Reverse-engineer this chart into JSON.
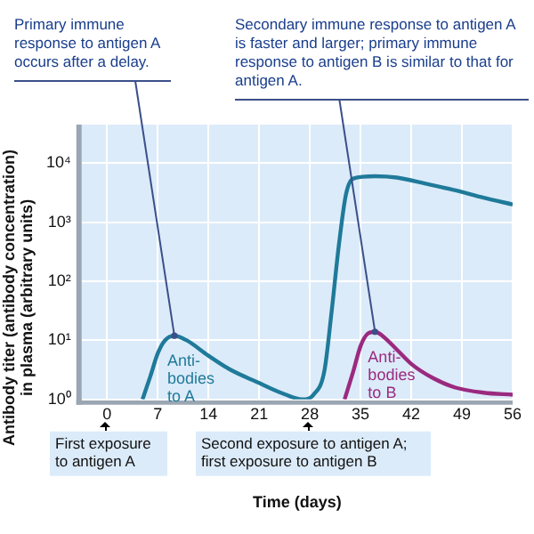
{
  "chart_data": {
    "type": "line",
    "xlabel": "Time (days)",
    "ylabel": "Antibody titer (antibody concentration) in plasma (arbitrary units)",
    "log": "y",
    "grid": true,
    "marker": "none",
    "xlim": [
      -3.5,
      56
    ],
    "xticks": [
      0,
      7,
      14,
      21,
      28,
      35,
      42,
      49,
      56
    ],
    "ylim": [
      1,
      45000
    ],
    "yticks": [
      {
        "value": 1,
        "label": "10⁰"
      },
      {
        "value": 10,
        "label": "10¹"
      },
      {
        "value": 100,
        "label": "10²"
      },
      {
        "value": 1000,
        "label": "10³"
      },
      {
        "value": 10000,
        "label": "10⁴"
      }
    ],
    "series": [
      {
        "name": "Anti-bodies to A",
        "color": "#1f7a9a",
        "x": [
          4.9,
          6,
          7,
          8,
          9.3,
          11,
          14,
          17,
          21,
          24,
          27,
          28.5,
          30,
          31,
          32,
          33,
          34,
          37,
          40,
          44,
          48,
          52,
          56
        ],
        "values": [
          1,
          2.5,
          6,
          10,
          12,
          10,
          5.5,
          3.2,
          1.9,
          1.3,
          1,
          1.2,
          3,
          30,
          400,
          3000,
          5500,
          6000,
          5700,
          4500,
          3500,
          2600,
          2000
        ]
      },
      {
        "name": "Anti-bodies to B",
        "color": "#9b2a7f",
        "x": [
          32.8,
          34,
          35,
          36,
          37,
          38,
          40,
          42,
          45,
          48,
          52,
          56
        ],
        "values": [
          1,
          3,
          8,
          13,
          14,
          12,
          7,
          4,
          2.3,
          1.6,
          1.3,
          1.2
        ]
      }
    ],
    "annotations": [
      {
        "text": "Primary immune response to antigen A occurs after a delay.",
        "x": 9.3,
        "y": 12
      },
      {
        "text": "Secondary immune response to antigen A is faster and larger; primary immune response to antigen B is similar to that for antigen A.",
        "x": 37,
        "y": 14
      },
      "First exposure to antigen A",
      "Second exposure to antigen A; first exposure to antigen B"
    ]
  }
}
